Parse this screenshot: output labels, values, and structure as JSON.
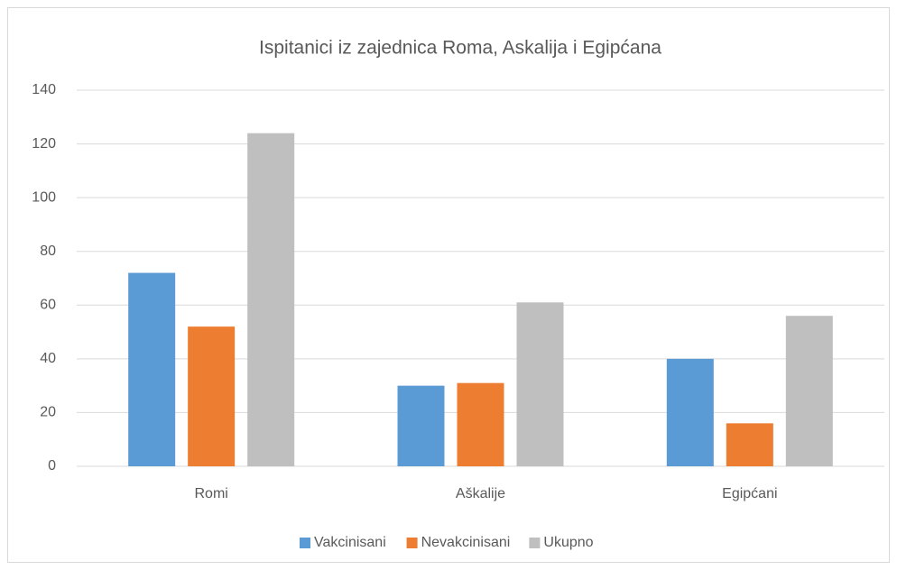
{
  "chart_data": {
    "type": "bar",
    "title": "Ispitanici iz zajednica Roma, Askalija i Egipćana",
    "categories": [
      "Romi",
      "Aškalije",
      "Egipćani"
    ],
    "series": [
      {
        "name": "Vakcinisani",
        "color": "#5b9bd5",
        "values": [
          72,
          30,
          40
        ]
      },
      {
        "name": "Nevakcinisani",
        "color": "#ed7d31",
        "values": [
          52,
          31,
          16
        ]
      },
      {
        "name": "Ukupno",
        "color": "#bfbfbf",
        "values": [
          124,
          61,
          56
        ]
      }
    ],
    "ylim": [
      0,
      140
    ],
    "yticks": [
      0,
      20,
      40,
      60,
      80,
      100,
      120,
      140
    ],
    "grid": true,
    "legend": "bottom"
  }
}
